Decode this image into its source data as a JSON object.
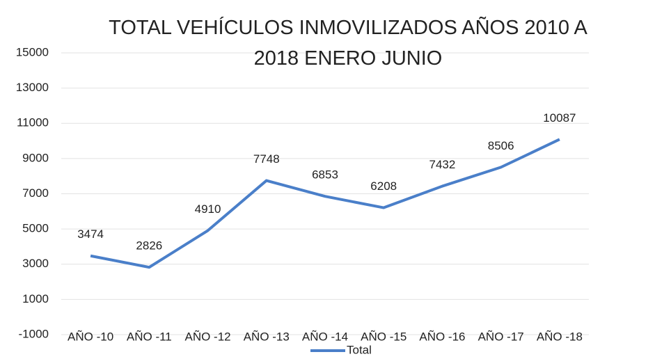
{
  "chart_data": {
    "type": "line",
    "title": "TOTAL VEHÍCULOS INMOVILIZADOS  AÑOS 2010 A 2018 ENERO JUNIO",
    "categories": [
      "AÑO -10",
      "AÑO -11",
      "AÑO -12",
      "AÑO -13",
      "AÑO -14",
      "AÑO -15",
      "AÑO -16",
      "AÑO -17",
      "AÑO -18"
    ],
    "series": [
      {
        "name": "Total",
        "color": "#4a7fc9",
        "values": [
          3474,
          2826,
          4910,
          7748,
          6853,
          6208,
          7432,
          8506,
          10087
        ]
      }
    ],
    "ylim": [
      -1000,
      15000
    ],
    "yticks": [
      -1000,
      1000,
      3000,
      5000,
      7000,
      9000,
      11000,
      13000,
      15000
    ],
    "grid": true,
    "legend": "bottom"
  }
}
